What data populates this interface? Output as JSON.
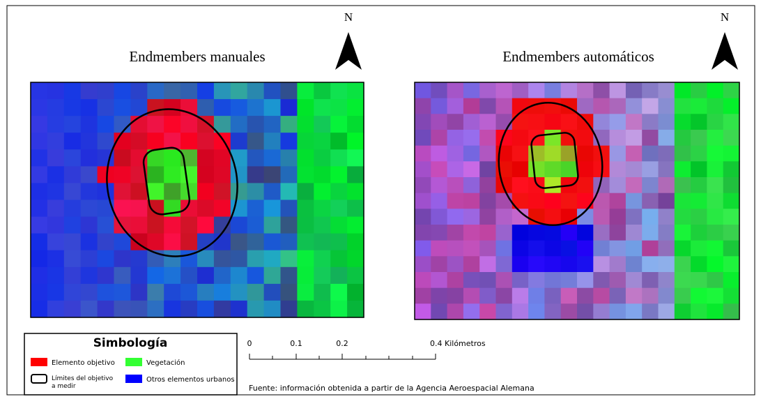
{
  "panels": [
    {
      "title": "Endmembers manuales",
      "north": "N"
    },
    {
      "title": "Endmembers automáticos",
      "north": "N"
    }
  ],
  "legend": {
    "title": "Simbología",
    "items": [
      {
        "label": "Elemento objetivo"
      },
      {
        "label": "Vegetación"
      },
      {
        "label": [
          "Límites del objetivo",
          "a medir"
        ]
      },
      {
        "label": "Otros elementos urbanos"
      }
    ]
  },
  "scale_bar": {
    "labels": [
      "0",
      "0.1",
      "0.2",
      "0.4 Kilómetros"
    ]
  },
  "source": "Fuente: información obtenida a partir de la Agencia Aeroespacial Alemana"
}
